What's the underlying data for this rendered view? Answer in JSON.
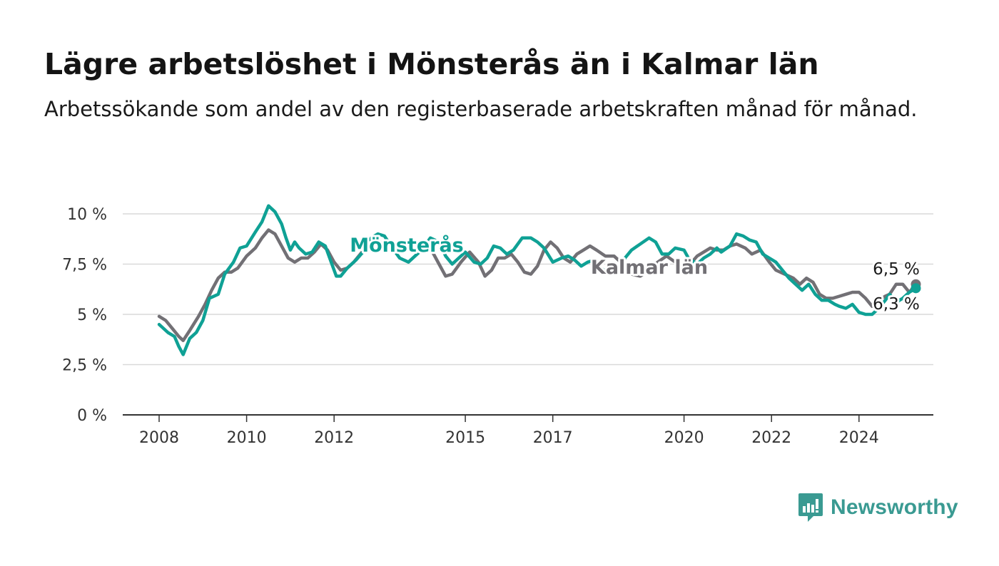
{
  "title": "Lägre arbetslöshet i Mönsterås än i Kalmar län",
  "subtitle": "Arbetssökande som andel av den registerbaserade arbetskraften månad för månad.",
  "brand": "Newsworthy",
  "colors": {
    "monsteras": "#0fa195",
    "kalmar": "#727075",
    "grid": "#d9d9d9",
    "axis": "#333333"
  },
  "chart_data": {
    "type": "line",
    "ylim": [
      0,
      10
    ],
    "grid": true,
    "y_ticks": [
      0,
      2.5,
      5,
      7.5,
      10
    ],
    "y_tick_labels": [
      "0 %",
      "2,5 %",
      "5 %",
      "7,5 %",
      "10 %"
    ],
    "x_ticks": [
      2008,
      2010,
      2012,
      2015,
      2017,
      2020,
      2022,
      2024
    ],
    "x_tick_labels": [
      "2008",
      "2010",
      "2012",
      "2015",
      "2017",
      "2020",
      "2022",
      "2024"
    ],
    "series": [
      {
        "name": "Mönsterås",
        "label": "Mönsterås",
        "end_label": "6,3 %",
        "points": [
          [
            2008.0,
            4.5
          ],
          [
            2008.2,
            4.1
          ],
          [
            2008.35,
            3.9
          ],
          [
            2008.45,
            3.4
          ],
          [
            2008.55,
            3.0
          ],
          [
            2008.7,
            3.8
          ],
          [
            2008.85,
            4.1
          ],
          [
            2009.0,
            4.7
          ],
          [
            2009.15,
            5.8
          ],
          [
            2009.35,
            6.0
          ],
          [
            2009.5,
            7.0
          ],
          [
            2009.7,
            7.6
          ],
          [
            2009.85,
            8.3
          ],
          [
            2010.0,
            8.4
          ],
          [
            2010.2,
            9.1
          ],
          [
            2010.35,
            9.6
          ],
          [
            2010.5,
            10.4
          ],
          [
            2010.65,
            10.1
          ],
          [
            2010.8,
            9.5
          ],
          [
            2010.9,
            8.8
          ],
          [
            2011.0,
            8.2
          ],
          [
            2011.1,
            8.6
          ],
          [
            2011.2,
            8.3
          ],
          [
            2011.35,
            8.0
          ],
          [
            2011.5,
            8.1
          ],
          [
            2011.65,
            8.6
          ],
          [
            2011.8,
            8.4
          ],
          [
            2011.95,
            7.5
          ],
          [
            2012.05,
            6.9
          ],
          [
            2012.15,
            6.9
          ],
          [
            2012.3,
            7.3
          ],
          [
            2012.5,
            7.7
          ],
          [
            2012.7,
            8.2
          ],
          [
            2012.85,
            8.8
          ],
          [
            2013.0,
            9.0
          ],
          [
            2013.15,
            8.9
          ],
          [
            2013.3,
            8.4
          ],
          [
            2013.5,
            7.8
          ],
          [
            2013.7,
            7.6
          ],
          [
            2013.85,
            7.9
          ],
          [
            2014.0,
            8.2
          ],
          [
            2014.2,
            8.8
          ],
          [
            2014.4,
            8.6
          ],
          [
            2014.55,
            7.9
          ],
          [
            2014.7,
            7.5
          ],
          [
            2014.85,
            7.8
          ],
          [
            2015.0,
            8.1
          ],
          [
            2015.2,
            7.6
          ],
          [
            2015.35,
            7.5
          ],
          [
            2015.5,
            7.8
          ],
          [
            2015.65,
            8.4
          ],
          [
            2015.8,
            8.3
          ],
          [
            2015.95,
            8.0
          ],
          [
            2016.1,
            8.2
          ],
          [
            2016.3,
            8.8
          ],
          [
            2016.5,
            8.8
          ],
          [
            2016.65,
            8.6
          ],
          [
            2016.8,
            8.3
          ],
          [
            2017.0,
            7.6
          ],
          [
            2017.2,
            7.8
          ],
          [
            2017.35,
            7.9
          ],
          [
            2017.5,
            7.7
          ],
          [
            2017.65,
            7.4
          ],
          [
            2017.8,
            7.6
          ],
          [
            2017.95,
            7.7
          ],
          [
            2018.1,
            7.3
          ],
          [
            2018.3,
            7.0
          ],
          [
            2018.5,
            7.2
          ],
          [
            2018.65,
            7.8
          ],
          [
            2018.8,
            8.2
          ],
          [
            2019.0,
            8.5
          ],
          [
            2019.2,
            8.8
          ],
          [
            2019.35,
            8.6
          ],
          [
            2019.5,
            8.0
          ],
          [
            2019.65,
            8.0
          ],
          [
            2019.8,
            8.3
          ],
          [
            2020.0,
            8.2
          ],
          [
            2020.1,
            7.8
          ],
          [
            2020.3,
            7.5
          ],
          [
            2020.45,
            7.8
          ],
          [
            2020.6,
            8.0
          ],
          [
            2020.75,
            8.3
          ],
          [
            2020.85,
            8.1
          ],
          [
            2021.05,
            8.4
          ],
          [
            2021.2,
            9.0
          ],
          [
            2021.35,
            8.9
          ],
          [
            2021.5,
            8.7
          ],
          [
            2021.65,
            8.6
          ],
          [
            2021.8,
            8.0
          ],
          [
            2021.95,
            7.8
          ],
          [
            2022.1,
            7.6
          ],
          [
            2022.25,
            7.2
          ],
          [
            2022.4,
            6.8
          ],
          [
            2022.55,
            6.5
          ],
          [
            2022.7,
            6.2
          ],
          [
            2022.85,
            6.5
          ],
          [
            2023.0,
            6.0
          ],
          [
            2023.15,
            5.7
          ],
          [
            2023.3,
            5.7
          ],
          [
            2023.45,
            5.5
          ],
          [
            2023.55,
            5.4
          ],
          [
            2023.7,
            5.3
          ],
          [
            2023.85,
            5.5
          ],
          [
            2024.0,
            5.1
          ],
          [
            2024.15,
            5.0
          ],
          [
            2024.3,
            5.0
          ],
          [
            2024.45,
            5.3
          ],
          [
            2024.6,
            5.7
          ],
          [
            2024.7,
            6.0
          ],
          [
            2024.85,
            5.6
          ],
          [
            2025.0,
            5.8
          ],
          [
            2025.15,
            6.1
          ],
          [
            2025.3,
            6.3
          ]
        ]
      },
      {
        "name": "Kalmar län",
        "label": "Kalmar län",
        "end_label": "6,5 %",
        "points": [
          [
            2008.0,
            4.9
          ],
          [
            2008.15,
            4.7
          ],
          [
            2008.3,
            4.3
          ],
          [
            2008.45,
            3.9
          ],
          [
            2008.55,
            3.7
          ],
          [
            2008.7,
            4.2
          ],
          [
            2008.9,
            4.9
          ],
          [
            2009.05,
            5.5
          ],
          [
            2009.2,
            6.2
          ],
          [
            2009.35,
            6.8
          ],
          [
            2009.5,
            7.1
          ],
          [
            2009.65,
            7.1
          ],
          [
            2009.8,
            7.3
          ],
          [
            2010.0,
            7.9
          ],
          [
            2010.2,
            8.3
          ],
          [
            2010.35,
            8.8
          ],
          [
            2010.5,
            9.2
          ],
          [
            2010.65,
            9.0
          ],
          [
            2010.8,
            8.4
          ],
          [
            2010.95,
            7.8
          ],
          [
            2011.1,
            7.6
          ],
          [
            2011.25,
            7.8
          ],
          [
            2011.4,
            7.8
          ],
          [
            2011.55,
            8.1
          ],
          [
            2011.7,
            8.5
          ],
          [
            2011.85,
            8.2
          ],
          [
            2012.0,
            7.6
          ],
          [
            2012.15,
            7.2
          ],
          [
            2012.3,
            7.3
          ],
          [
            2012.45,
            7.6
          ],
          [
            2012.6,
            8.0
          ],
          [
            2012.75,
            8.4
          ],
          [
            2012.9,
            8.7
          ],
          [
            2013.05,
            8.6
          ],
          [
            2013.25,
            8.2
          ],
          [
            2013.45,
            8.2
          ],
          [
            2013.6,
            8.4
          ],
          [
            2013.75,
            8.3
          ],
          [
            2013.85,
            8.1
          ],
          [
            2014.0,
            8.1
          ],
          [
            2014.2,
            8.3
          ],
          [
            2014.4,
            7.5
          ],
          [
            2014.55,
            6.9
          ],
          [
            2014.7,
            7.0
          ],
          [
            2014.9,
            7.6
          ],
          [
            2015.1,
            8.1
          ],
          [
            2015.3,
            7.6
          ],
          [
            2015.45,
            6.9
          ],
          [
            2015.6,
            7.2
          ],
          [
            2015.75,
            7.8
          ],
          [
            2015.9,
            7.8
          ],
          [
            2016.05,
            8.0
          ],
          [
            2016.2,
            7.6
          ],
          [
            2016.35,
            7.1
          ],
          [
            2016.5,
            7.0
          ],
          [
            2016.65,
            7.4
          ],
          [
            2016.8,
            8.2
          ],
          [
            2016.95,
            8.6
          ],
          [
            2017.1,
            8.3
          ],
          [
            2017.25,
            7.8
          ],
          [
            2017.4,
            7.6
          ],
          [
            2017.55,
            8.0
          ],
          [
            2017.7,
            8.2
          ],
          [
            2017.85,
            8.4
          ],
          [
            2018.0,
            8.2
          ],
          [
            2018.2,
            7.9
          ],
          [
            2018.4,
            7.9
          ],
          [
            2018.6,
            7.5
          ],
          [
            2018.8,
            7.0
          ],
          [
            2019.0,
            6.9
          ],
          [
            2019.2,
            7.2
          ],
          [
            2019.4,
            7.6
          ],
          [
            2019.6,
            7.9
          ],
          [
            2019.8,
            7.6
          ],
          [
            2020.0,
            7.4
          ],
          [
            2020.1,
            7.4
          ],
          [
            2020.3,
            7.9
          ],
          [
            2020.45,
            8.1
          ],
          [
            2020.6,
            8.3
          ],
          [
            2020.75,
            8.2
          ],
          [
            2020.9,
            8.2
          ],
          [
            2021.05,
            8.4
          ],
          [
            2021.2,
            8.5
          ],
          [
            2021.4,
            8.3
          ],
          [
            2021.55,
            8.0
          ],
          [
            2021.75,
            8.2
          ],
          [
            2021.95,
            7.6
          ],
          [
            2022.1,
            7.2
          ],
          [
            2022.3,
            7.0
          ],
          [
            2022.5,
            6.8
          ],
          [
            2022.65,
            6.5
          ],
          [
            2022.8,
            6.8
          ],
          [
            2022.95,
            6.6
          ],
          [
            2023.1,
            6.0
          ],
          [
            2023.25,
            5.8
          ],
          [
            2023.4,
            5.8
          ],
          [
            2023.55,
            5.9
          ],
          [
            2023.7,
            6.0
          ],
          [
            2023.85,
            6.1
          ],
          [
            2024.0,
            6.1
          ],
          [
            2024.15,
            5.8
          ],
          [
            2024.3,
            5.4
          ],
          [
            2024.45,
            5.7
          ],
          [
            2024.6,
            5.9
          ],
          [
            2024.7,
            6.0
          ],
          [
            2024.85,
            6.5
          ],
          [
            2025.0,
            6.5
          ],
          [
            2025.15,
            6.1
          ],
          [
            2025.3,
            6.5
          ]
        ]
      }
    ]
  }
}
